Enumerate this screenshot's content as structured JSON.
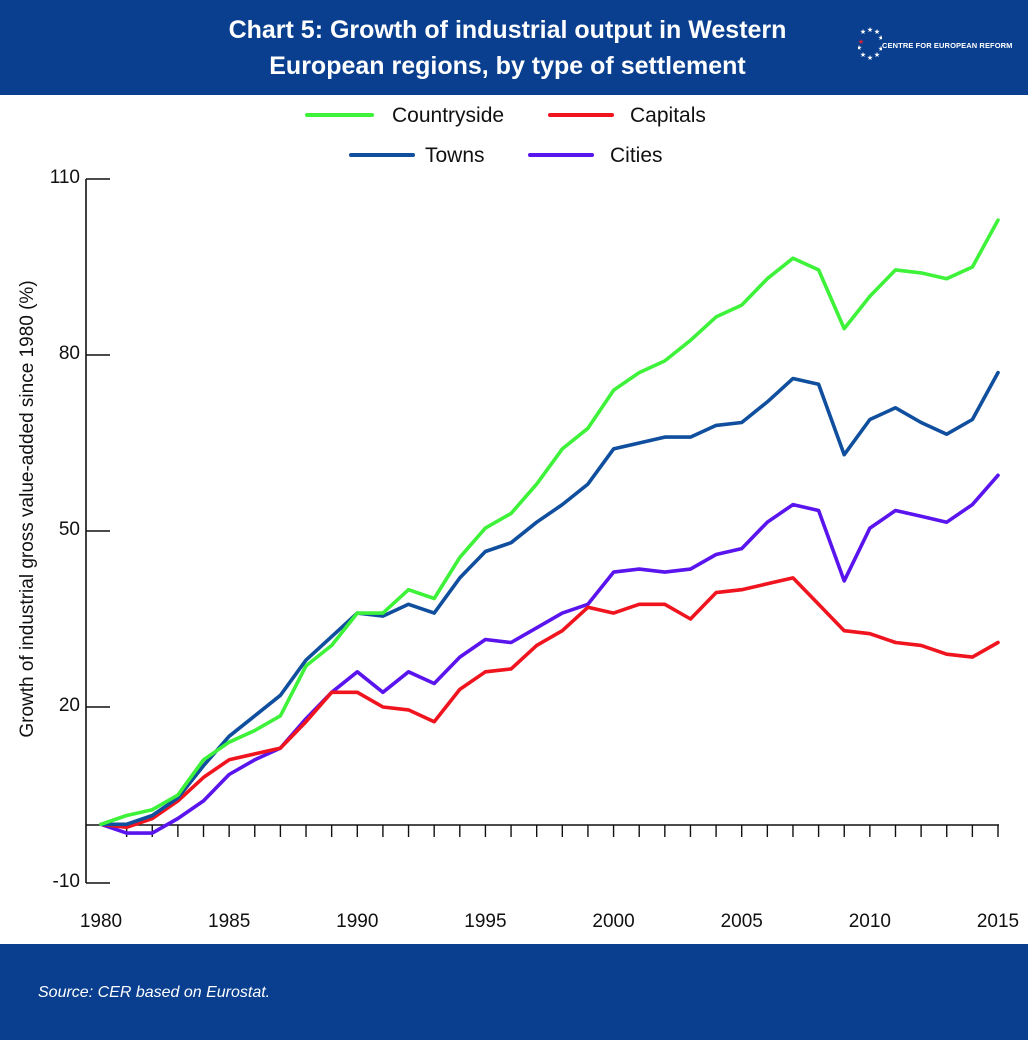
{
  "header": {
    "title_line1": "Chart 5: Growth of industrial output in Western",
    "title_line2": "European regions, by type of settlement",
    "logo_text": "CENTRE FOR EUROPEAN REFORM",
    "background_color": "#0a3f8f"
  },
  "footer": {
    "source": "Source:  CER based on Eurostat."
  },
  "chart_data": {
    "type": "line",
    "ylabel": "Growth of industrial gross value-added since 1980 (%)",
    "xlabel": "",
    "ylim": [
      -10,
      110
    ],
    "y_ticks": [
      -10,
      20,
      50,
      80,
      110
    ],
    "x_ticks": [
      1980,
      1985,
      1990,
      1995,
      2000,
      2005,
      2010,
      2015
    ],
    "grid": false,
    "legend_position": "top",
    "x": [
      1980,
      1981,
      1982,
      1983,
      1984,
      1985,
      1986,
      1987,
      1988,
      1989,
      1990,
      1991,
      1992,
      1993,
      1994,
      1995,
      1996,
      1997,
      1998,
      1999,
      2000,
      2001,
      2002,
      2003,
      2004,
      2005,
      2006,
      2007,
      2008,
      2009,
      2010,
      2011,
      2012,
      2013,
      2014,
      2015
    ],
    "series": [
      {
        "name": "Countryside",
        "color": "#3ef23a",
        "values": [
          0,
          1.5,
          2.5,
          5,
          11,
          14,
          16,
          18.5,
          27,
          30.5,
          36,
          36,
          40,
          38.5,
          45.5,
          50.5,
          53,
          58,
          64,
          67.5,
          74,
          77,
          79,
          82.5,
          86.5,
          88.5,
          93,
          96.5,
          94.5,
          84.5,
          90,
          94.5,
          94,
          93,
          95,
          103
        ]
      },
      {
        "name": "Capitals",
        "color": "#f0141e",
        "values": [
          0,
          -0.5,
          1,
          4,
          8,
          11,
          12,
          13,
          17.5,
          22.5,
          22.5,
          20,
          19.5,
          17.5,
          23,
          26,
          26.5,
          30.5,
          33,
          37,
          36,
          37.5,
          37.5,
          35,
          39.5,
          40,
          41,
          42,
          37.5,
          33,
          32.5,
          31,
          30.5,
          29,
          28.5,
          31
        ]
      },
      {
        "name": "Towns",
        "color": "#104e9e",
        "values": [
          0,
          0,
          1.5,
          4.5,
          10,
          15,
          18.5,
          22,
          28,
          32,
          36,
          35.5,
          37.5,
          36,
          42,
          46.5,
          48,
          51.5,
          54.5,
          58,
          64,
          65,
          66,
          66,
          68,
          68.5,
          72,
          76,
          75,
          63,
          69,
          71,
          68.5,
          66.5,
          69,
          77
        ]
      },
      {
        "name": "Cities",
        "color": "#5a14ee",
        "values": [
          0,
          -1.5,
          -1.5,
          1,
          4,
          8.5,
          11,
          13,
          18,
          22.5,
          26,
          22.5,
          26,
          24,
          28.5,
          31.5,
          31,
          33.5,
          36,
          37.5,
          43,
          43.5,
          43,
          43.5,
          46,
          47,
          51.5,
          54.5,
          53.5,
          41.5,
          50.5,
          53.5,
          52.5,
          51.5,
          54.5,
          59.5
        ]
      }
    ]
  }
}
